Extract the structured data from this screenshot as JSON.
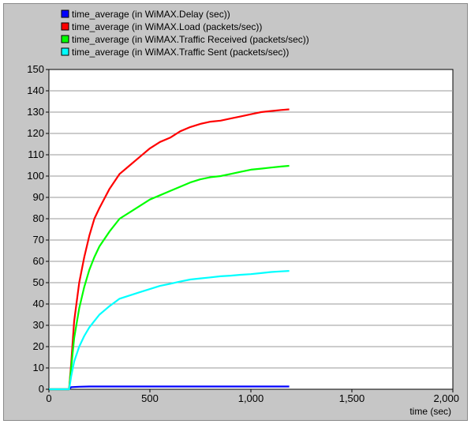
{
  "chart_data": {
    "type": "line",
    "title": "",
    "xlabel": "time (sec)",
    "ylabel": "",
    "xlim": [
      0,
      2000
    ],
    "ylim": [
      0,
      150
    ],
    "x_ticks": [
      0,
      500,
      1000,
      1500,
      2000
    ],
    "x_tick_labels": [
      "0",
      "500",
      "1,000",
      "1,500",
      "2,000"
    ],
    "y_ticks": [
      0,
      10,
      20,
      30,
      40,
      50,
      60,
      70,
      80,
      90,
      100,
      110,
      120,
      130,
      140,
      150
    ],
    "grid": "horizontal",
    "legend_position": "top-left",
    "series": [
      {
        "name": "time_average (in WiMAX.Delay (sec))",
        "color": "#0000ff",
        "x": [
          0,
          100,
          110,
          150,
          200,
          300,
          500,
          700,
          900,
          1100,
          1190
        ],
        "y": [
          0,
          0,
          1,
          1.2,
          1.3,
          1.3,
          1.3,
          1.3,
          1.3,
          1.3,
          1.3
        ]
      },
      {
        "name": "time_average (in WiMAX.Load (packets/sec))",
        "color": "#ff0000",
        "x": [
          0,
          100,
          110,
          125,
          150,
          175,
          200,
          225,
          250,
          300,
          350,
          400,
          450,
          500,
          550,
          600,
          650,
          700,
          750,
          800,
          850,
          900,
          950,
          1000,
          1050,
          1100,
          1150,
          1190
        ],
        "y": [
          0,
          0,
          12,
          32,
          50,
          62,
          72,
          80,
          85,
          94,
          101,
          105,
          109,
          113,
          116,
          118,
          121,
          123,
          124.5,
          125.5,
          126,
          127,
          128,
          129,
          130,
          130.5,
          131,
          131.3
        ]
      },
      {
        "name": "time_average (in WiMAX.Traffic Received (packets/sec))",
        "color": "#00ff00",
        "x": [
          0,
          100,
          110,
          125,
          150,
          175,
          200,
          225,
          250,
          300,
          350,
          400,
          450,
          500,
          550,
          600,
          650,
          700,
          750,
          800,
          850,
          900,
          950,
          1000,
          1050,
          1100,
          1150,
          1190
        ],
        "y": [
          0,
          0,
          10,
          24,
          38,
          48,
          56,
          62,
          67,
          74,
          80,
          83,
          86,
          89,
          91,
          93,
          95,
          97,
          98.5,
          99.5,
          100,
          101,
          102,
          103,
          103.5,
          104,
          104.5,
          104.8
        ]
      },
      {
        "name": "time_average (in WiMAX.Traffic Sent (packets/sec))",
        "color": "#00ffff",
        "x": [
          0,
          100,
          110,
          125,
          150,
          175,
          200,
          225,
          250,
          300,
          350,
          400,
          450,
          500,
          550,
          600,
          650,
          700,
          750,
          800,
          850,
          900,
          950,
          1000,
          1050,
          1100,
          1150,
          1190
        ],
        "y": [
          0,
          0,
          6,
          13,
          20,
          25,
          29,
          32,
          35,
          39,
          42.5,
          44,
          45.5,
          47,
          48.5,
          49.5,
          50.5,
          51.5,
          52,
          52.5,
          53,
          53.3,
          53.7,
          54,
          54.5,
          55,
          55.3,
          55.5
        ]
      }
    ]
  }
}
